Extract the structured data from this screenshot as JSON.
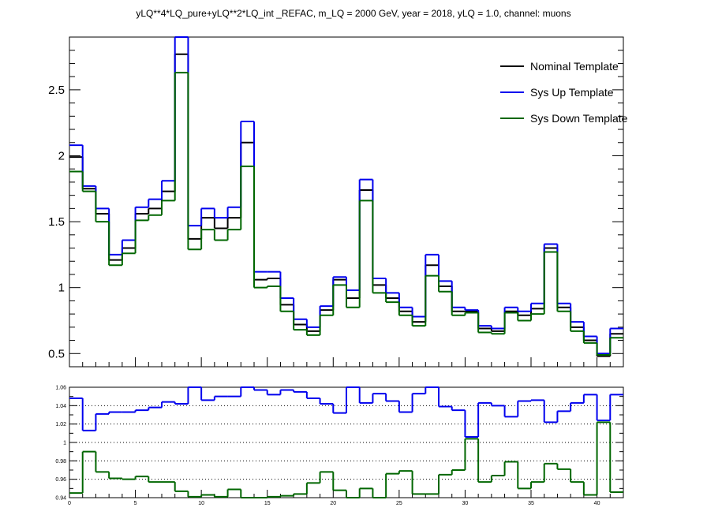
{
  "title": "yLQ**4*LQ_pure+yLQ**2*LQ_int _REFAC, m_LQ = 2000 GeV, year = 2018, yLQ = 1.0, channel: muons",
  "legend": [
    {
      "label": "Nominal Template",
      "color": "#000000"
    },
    {
      "label": "Sys Up Template",
      "color": "#0000ee"
    },
    {
      "label": "Sys Down Template",
      "color": "#006600"
    }
  ],
  "chart_data": [
    {
      "type": "line",
      "subtype": "step-histogram",
      "title": "yLQ**4*LQ_pure+yLQ**2*LQ_int _REFAC, m_LQ = 2000 GeV, year = 2018, yLQ = 1.0, channel: muons",
      "xlim": [
        0,
        42
      ],
      "ylim": [
        0.4,
        2.9
      ],
      "yticks": [
        "0.5",
        "1",
        "1.5",
        "2",
        "2.5"
      ],
      "series": [
        {
          "name": "Nominal Template",
          "color": "#000000",
          "values": [
            1.99,
            1.75,
            1.56,
            1.21,
            1.3,
            1.56,
            1.6,
            1.73,
            2.77,
            1.37,
            1.53,
            1.45,
            1.53,
            2.1,
            1.06,
            1.07,
            0.87,
            0.72,
            0.67,
            0.83,
            1.06,
            0.92,
            1.74,
            1.02,
            0.92,
            0.82,
            0.74,
            1.17,
            1.01,
            0.82,
            0.82,
            0.69,
            0.67,
            0.82,
            0.79,
            0.84,
            1.3,
            0.85,
            0.7,
            0.6,
            0.48,
            0.65
          ]
        },
        {
          "name": "Sys Up Template",
          "color": "#0000ee",
          "values": [
            2.08,
            1.77,
            1.6,
            1.25,
            1.36,
            1.61,
            1.67,
            1.81,
            2.95,
            1.47,
            1.6,
            1.53,
            1.61,
            2.26,
            1.12,
            1.12,
            0.92,
            0.76,
            0.7,
            0.86,
            1.08,
            0.98,
            1.82,
            1.07,
            0.96,
            0.85,
            0.78,
            1.25,
            1.05,
            0.85,
            0.83,
            0.71,
            0.69,
            0.85,
            0.82,
            0.88,
            1.33,
            0.88,
            0.74,
            0.63,
            0.5,
            0.69
          ]
        },
        {
          "name": "Sys Down Template",
          "color": "#006600",
          "values": [
            1.88,
            1.73,
            1.5,
            1.17,
            1.26,
            1.51,
            1.55,
            1.66,
            2.63,
            1.29,
            1.44,
            1.36,
            1.44,
            1.92,
            1.0,
            1.01,
            0.82,
            0.68,
            0.64,
            0.79,
            1.02,
            0.85,
            1.66,
            0.96,
            0.89,
            0.79,
            0.71,
            1.09,
            0.97,
            0.79,
            0.81,
            0.66,
            0.65,
            0.81,
            0.75,
            0.8,
            1.27,
            0.82,
            0.67,
            0.58,
            0.49,
            0.62
          ]
        }
      ]
    },
    {
      "type": "line",
      "subtype": "step-histogram-ratio",
      "xlim": [
        0,
        42
      ],
      "ylim": [
        0.94,
        1.06
      ],
      "xticks": [
        "0",
        "5",
        "10",
        "15",
        "20",
        "25",
        "30",
        "35",
        "40"
      ],
      "yticks": [
        "0.94",
        "0.96",
        "0.98",
        "1",
        "1.02",
        "1.04",
        "1.06"
      ],
      "grid": "horizontal dotted",
      "series": [
        {
          "name": "Sys Up Template",
          "color": "#0000ee",
          "values": [
            1.048,
            1.013,
            1.031,
            1.033,
            1.033,
            1.035,
            1.038,
            1.044,
            1.042,
            1.067,
            1.046,
            1.05,
            1.05,
            1.07,
            1.057,
            1.052,
            1.057,
            1.055,
            1.048,
            1.042,
            1.032,
            1.062,
            1.043,
            1.053,
            1.045,
            1.033,
            1.053,
            1.07,
            1.039,
            1.035,
            1.006,
            1.043,
            1.04,
            1.028,
            1.045,
            1.046,
            1.022,
            1.034,
            1.043,
            1.052,
            1.024,
            1.052
          ]
        },
        {
          "name": "Sys Down Template",
          "color": "#006600",
          "values": [
            0.945,
            0.99,
            0.968,
            0.961,
            0.96,
            0.963,
            0.957,
            0.957,
            0.947,
            0.941,
            0.943,
            0.941,
            0.949,
            0.938,
            0.94,
            0.941,
            0.942,
            0.944,
            0.956,
            0.968,
            0.948,
            0.929,
            0.95,
            0.94,
            0.966,
            0.969,
            0.944,
            0.944,
            0.965,
            0.97,
            1.004,
            0.957,
            0.964,
            0.979,
            0.95,
            0.957,
            0.977,
            0.971,
            0.957,
            0.943,
            1.022,
            0.946
          ]
        }
      ]
    }
  ]
}
